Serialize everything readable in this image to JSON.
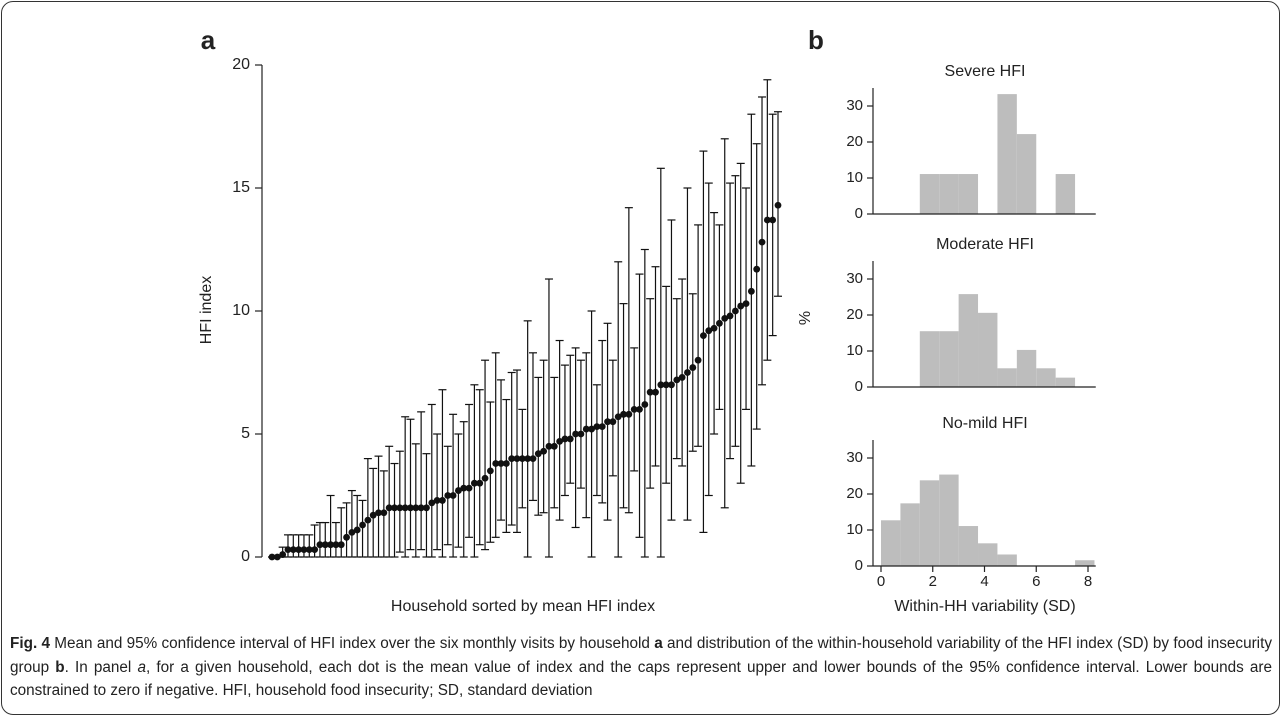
{
  "chart_data": [
    {
      "type": "errorbar",
      "panel": "a",
      "ylabel": "HFI index",
      "xlabel": "Household sorted by mean HFI index",
      "values": [
        0,
        0,
        0.1,
        0.3,
        0.3,
        0.3,
        0.3,
        0.3,
        0.3,
        0.5,
        0.5,
        0.5,
        0.5,
        0.5,
        0.8,
        1,
        1.1,
        1.3,
        1.5,
        1.7,
        1.8,
        1.8,
        2,
        2,
        2,
        2,
        2,
        2,
        2,
        2,
        2.2,
        2.3,
        2.3,
        2.5,
        2.5,
        2.7,
        2.8,
        2.8,
        3,
        3,
        3.2,
        3.5,
        3.8,
        3.8,
        3.8,
        4,
        4,
        4,
        4,
        4,
        4.2,
        4.3,
        4.5,
        4.5,
        4.7,
        4.8,
        4.8,
        5,
        5,
        5.2,
        5.2,
        5.3,
        5.3,
        5.5,
        5.5,
        5.7,
        5.8,
        5.8,
        6,
        6,
        6.2,
        6.7,
        6.7,
        7,
        7,
        7,
        7.2,
        7.3,
        7.5,
        7.7,
        8,
        9,
        9.2,
        9.3,
        9.5,
        9.7,
        9.8,
        10,
        10.2,
        10.3,
        10.8,
        11.7,
        12.8,
        13.7,
        13.7,
        14.3
      ],
      "lower": [
        0,
        0,
        0,
        0,
        0,
        0,
        0,
        0,
        0,
        0,
        0,
        0,
        0,
        0,
        0,
        0,
        0,
        0,
        0,
        0,
        0,
        0,
        0,
        0,
        0.2,
        0,
        0.3,
        0,
        0.3,
        0,
        0,
        0.3,
        0,
        0.5,
        0,
        0.4,
        0,
        0.8,
        0,
        0.5,
        0.3,
        0.6,
        0.8,
        1.5,
        1,
        1.3,
        1,
        2,
        0,
        2.3,
        1.7,
        1.8,
        0,
        2,
        1.5,
        2.5,
        3,
        1.2,
        2.8,
        1.6,
        0,
        2.5,
        2.2,
        1.5,
        3.3,
        0,
        2,
        1.8,
        3.5,
        0.8,
        0,
        2.8,
        3.7,
        0,
        3,
        1.5,
        4,
        3.7,
        1.5,
        4.3,
        4.5,
        1,
        2.5,
        5,
        6,
        2,
        4,
        4.5,
        3,
        6,
        3.7,
        5.2,
        7,
        8,
        9,
        10.6
      ],
      "upper": [
        0,
        0,
        0.4,
        0.9,
        0.9,
        0.9,
        0.9,
        0.9,
        1.3,
        1.4,
        1.4,
        2.5,
        1.4,
        2,
        2.2,
        2.7,
        2.5,
        2.3,
        4,
        3.6,
        4.1,
        3.5,
        4.5,
        3.8,
        4.3,
        5.7,
        5.6,
        4.6,
        5.9,
        4.2,
        6.2,
        5,
        6.8,
        4.5,
        5.8,
        5,
        5.5,
        6.2,
        7,
        6.8,
        8,
        6.3,
        8.3,
        7.2,
        6.4,
        7.5,
        7.6,
        6,
        9.6,
        8.3,
        7.3,
        8,
        11.3,
        7.3,
        8.8,
        7.8,
        8.2,
        8.5,
        8,
        8.3,
        10,
        7,
        8.8,
        9.5,
        8,
        12,
        10.3,
        14.2,
        8.5,
        11.5,
        12.5,
        10.5,
        11.8,
        15.8,
        11,
        13.7,
        10.5,
        11.3,
        15,
        10.7,
        13.5,
        16.5,
        15.2,
        14,
        13.5,
        17,
        15.2,
        15.5,
        16,
        15,
        18,
        16.8,
        18.7,
        19.4,
        18,
        18.1
      ],
      "ylim": [
        0,
        20.2
      ],
      "yticks": [
        0,
        5,
        10,
        15,
        20
      ],
      "color": "#111111"
    },
    {
      "type": "histogram",
      "panel": "b",
      "title": "Severe HFI",
      "bins": [
        0,
        0.75,
        1.5,
        2.25,
        3,
        3.75,
        4.5,
        5.25,
        6,
        6.75,
        7.5,
        8.25
      ],
      "values": [
        0,
        0,
        11.1,
        11.1,
        11.1,
        0,
        33.3,
        22.2,
        0,
        11.1,
        0
      ],
      "xlim": [
        0,
        8.3
      ],
      "ylim": [
        0,
        35
      ],
      "yticks": [
        0,
        10,
        20,
        30
      ],
      "color": "#bdbdbd"
    },
    {
      "type": "histogram",
      "title": "Moderate HFI",
      "ylabel": "%",
      "bins": [
        0,
        0.75,
        1.5,
        2.25,
        3,
        3.75,
        4.5,
        5.25,
        6,
        6.75,
        7.5,
        8.25
      ],
      "values": [
        0,
        0,
        15.5,
        15.5,
        25.8,
        20.6,
        5.2,
        10.3,
        5.2,
        2.6,
        0
      ],
      "xlim": [
        0,
        8.3
      ],
      "ylim": [
        0,
        35
      ],
      "yticks": [
        0,
        10,
        20,
        30
      ],
      "color": "#bdbdbd"
    },
    {
      "type": "histogram",
      "title": "No-mild HFI",
      "xlabel": "Within-HH variability (SD)",
      "bins": [
        0,
        0.75,
        1.5,
        2.25,
        3,
        3.75,
        4.5,
        5.25,
        6,
        6.75,
        7.5,
        8.25
      ],
      "values": [
        12.7,
        17.4,
        23.8,
        25.4,
        11.1,
        6.3,
        3.2,
        0,
        0,
        0,
        1.6
      ],
      "xlim": [
        0,
        8.3
      ],
      "ylim": [
        0,
        35
      ],
      "yticks": [
        0,
        10,
        20,
        30
      ],
      "xticks": [
        0,
        2,
        4,
        6,
        8
      ],
      "color": "#bdbdbd"
    }
  ],
  "caption": [
    "Fig. 4",
    " Mean and 95% confidence interval of HFI index over the six monthly visits by household ",
    "a",
    " and distribution of the within-household variability of the HFI index (SD) by food insecurity group ",
    "b",
    ". In panel ",
    "a",
    ", for a given household, each dot is the mean value of index and the caps represent upper and lower bounds of the 95% confidence interval. Lower bounds are constrained to zero if negative. HFI, household food insecurity; SD, standard deviation"
  ]
}
